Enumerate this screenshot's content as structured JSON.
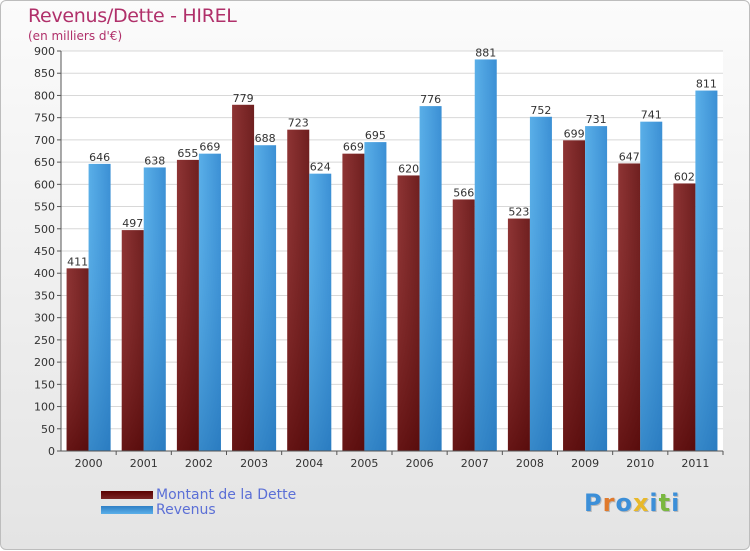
{
  "title": "Revenus/Dette - HIREL",
  "subtitle": "(en milliers d'€)",
  "logo": {
    "text": "Proxiti",
    "letter_colors": [
      "#3c8fd8",
      "#e07a2c",
      "#3c8fd8",
      "#e8b82a",
      "#3c8fd8",
      "#7ab840",
      "#3c8fd8"
    ]
  },
  "legend": {
    "dette_label": "Montant de la Dette",
    "revenus_label": "Revenus"
  },
  "colors": {
    "dette": "#7a2525",
    "dette_light": "#8e3434",
    "dette_dark": "#5a0000",
    "revenus": "#4a9fe0",
    "revenus_light": "#5aafe8",
    "revenus_dark": "#2f7fc6",
    "title": "#b0306a",
    "legend_text": "#5b6fd6"
  },
  "chart_data": {
    "type": "bar",
    "categories": [
      "2000",
      "2001",
      "2002",
      "2003",
      "2004",
      "2005",
      "2006",
      "2007",
      "2008",
      "2009",
      "2010",
      "2011"
    ],
    "series": [
      {
        "name": "Montant de la Dette",
        "values": [
          411,
          497,
          655,
          779,
          723,
          669,
          620,
          566,
          523,
          699,
          647,
          602
        ]
      },
      {
        "name": "Revenus",
        "values": [
          646,
          638,
          669,
          688,
          624,
          695,
          776,
          881,
          752,
          731,
          741,
          811
        ]
      }
    ],
    "ylim": [
      0,
      900
    ],
    "yticks": [
      0,
      50,
      100,
      150,
      200,
      250,
      300,
      350,
      400,
      450,
      500,
      550,
      600,
      650,
      700,
      750,
      800,
      850,
      900
    ],
    "grid": true,
    "legend_position": "bottom-left"
  }
}
